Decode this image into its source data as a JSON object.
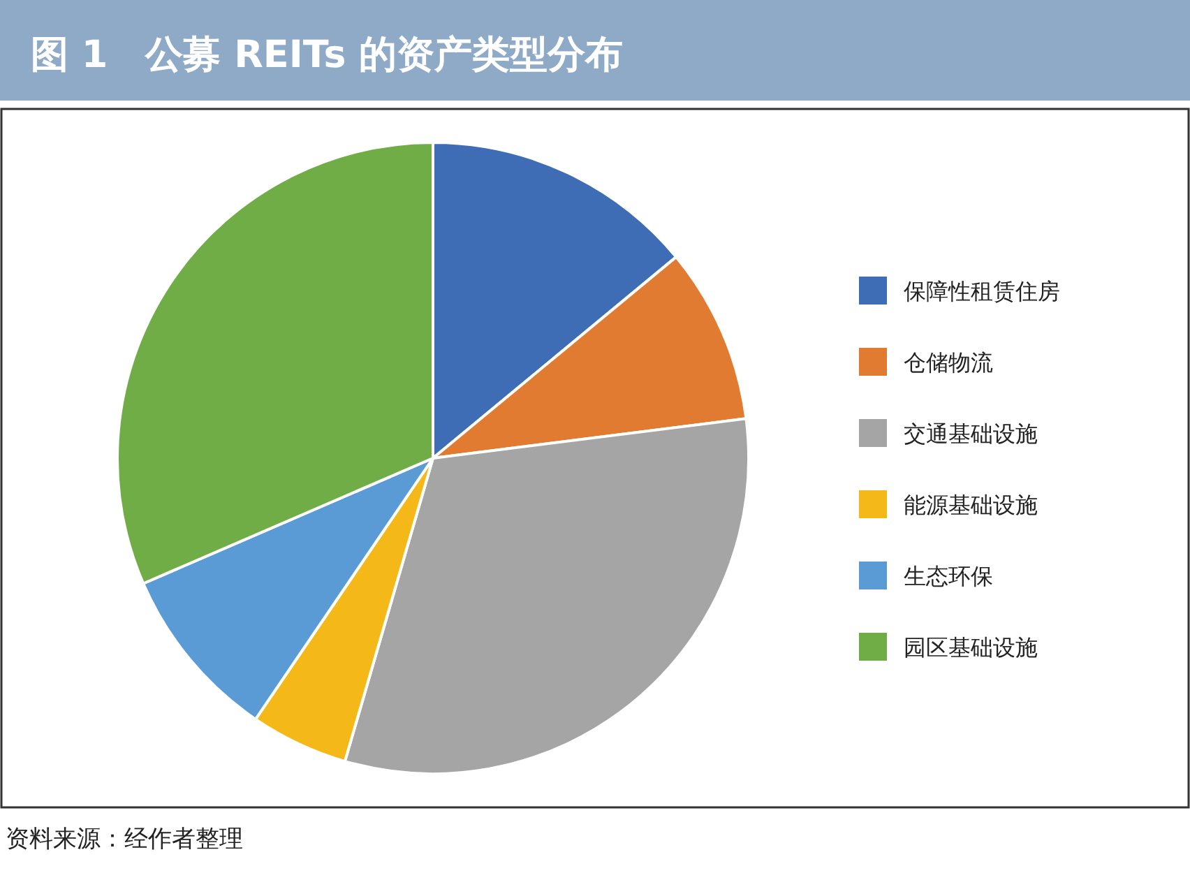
{
  "chart_data": {
    "type": "pie",
    "title": "图 1　公募 REITs 的资产类型分布",
    "categories": [
      "保障性租赁住房",
      "仓储物流",
      "交通基础设施",
      "能源基础设施",
      "生态环保",
      "园区基础设施"
    ],
    "values": [
      14,
      9,
      31.5,
      5,
      9,
      31.5
    ],
    "colors": [
      "#3e6db5",
      "#e07b31",
      "#a5a5a5",
      "#f4b919",
      "#5b9bd5",
      "#70ad47"
    ],
    "legend": "right",
    "annotations": [
      "资料来源：经作者整理"
    ]
  }
}
